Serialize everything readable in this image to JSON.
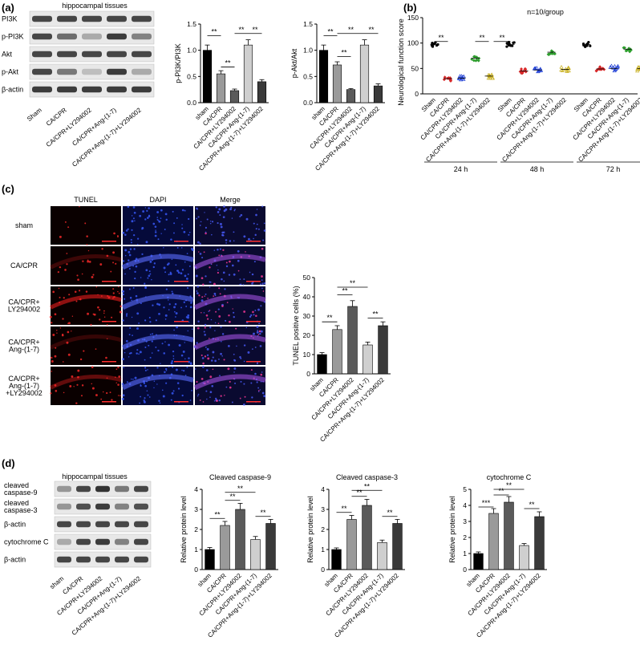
{
  "panels": {
    "a": {
      "letter": "(a)",
      "blot_title": "hippocampal tissues",
      "blot_rows": [
        "PI3K",
        "p-PI3K",
        "Akt",
        "p-Akt",
        "β-actin"
      ],
      "lane_labels": [
        "Sham",
        "CA/CPR",
        "CA/CPR+LY294002",
        "CA/CPR+Ang-(1-7)",
        "CA/CPR+Ang-(1-7)+LY294002"
      ],
      "sig": "**"
    },
    "b": {
      "letter": "(b)",
      "note": "n=10/group",
      "sig": "**"
    },
    "c": {
      "letter": "(c)",
      "col_headers": [
        "TUNEL",
        "DAPI",
        "Merge"
      ],
      "row_labels": [
        "sham",
        "CA/CPR",
        "CA/CPR+\nLY294002",
        "CA/CPR+\nAng-(1-7)",
        "CA/CPR+\nAng-(1-7)\n+LY294002"
      ],
      "sig": "**"
    },
    "d": {
      "letter": "(d)",
      "blot_title": "hippocampal  tissues",
      "blot_rows": [
        "cleaved\ncaspase-9",
        "cleaved\ncaspase-3",
        "β-actin",
        "cytochrome C",
        "β-actin"
      ],
      "lane_labels": [
        "sham",
        "CA/CPR",
        "CA/CPR+LY294002",
        "CA/CPR+Ang-(1-7)",
        "CA/CPR+Ang-(1-7)+LY294002"
      ],
      "sig2": "**",
      "sig3": "***"
    }
  },
  "chart_data": [
    {
      "id": "a1",
      "type": "bar",
      "ylabel": "p-PI3K/PI3K",
      "ylim": [
        0,
        1.5
      ],
      "yticks": [
        0.0,
        0.5,
        1.0,
        1.5
      ],
      "categories": [
        "sham",
        "CA/CPR",
        "CA/CPR+LY294002",
        "CA/CPR+Ang-(1-7)",
        "CA/CPR+Ang-(1-7)+LY294002"
      ],
      "values": [
        1.0,
        0.55,
        0.23,
        1.1,
        0.4
      ],
      "errors": [
        0.1,
        0.06,
        0.03,
        0.1,
        0.04
      ],
      "colors": [
        "#000000",
        "#9a9a9a",
        "#5a5a5a",
        "#cfcfcf",
        "#3a3a3a"
      ]
    },
    {
      "id": "a2",
      "type": "bar",
      "ylabel": "p-Akt/Akt",
      "ylim": [
        0,
        1.5
      ],
      "yticks": [
        0.0,
        0.5,
        1.0,
        1.5
      ],
      "categories": [
        "sham",
        "CA/CPR",
        "CA/CPR+LY294002",
        "CA/CPR+Ang-(1-7)",
        "CA/CPR+Ang-(1-7)+LY294002"
      ],
      "values": [
        1.0,
        0.72,
        0.25,
        1.1,
        0.32
      ],
      "errors": [
        0.1,
        0.06,
        0.02,
        0.1,
        0.04
      ],
      "colors": [
        "#000000",
        "#9a9a9a",
        "#5a5a5a",
        "#cfcfcf",
        "#3a3a3a"
      ]
    },
    {
      "id": "b",
      "type": "scatter",
      "ylabel": "Neurological function score",
      "ylim": [
        0,
        150
      ],
      "yticks": [
        0,
        50,
        100,
        150
      ],
      "categories": [
        "Sham",
        "CA/CPR",
        "CA/CPR+LY294002",
        "CA/CPR+Ang-(1-7)",
        "CA/CPR+Ang-(1-7)+LY294002"
      ],
      "groups": [
        "24 h",
        "48 h",
        "72 h"
      ],
      "colors": [
        "#000000",
        "#d62728",
        "#1f3fd6",
        "#2e9e2e",
        "#c8b020"
      ],
      "means": [
        [
          97,
          30,
          31,
          70,
          35
        ],
        [
          97,
          45,
          47,
          82,
          48
        ],
        [
          97,
          49,
          50,
          88,
          50
        ]
      ]
    },
    {
      "id": "c",
      "type": "bar",
      "ylabel": "TUNEL positive cells (%)",
      "ylim": [
        0,
        50
      ],
      "yticks": [
        0,
        10,
        20,
        30,
        40,
        50
      ],
      "categories": [
        "sham",
        "CA/CPR",
        "CA/CPR+LY294002",
        "CA/CPR+Ang-(1-7)",
        "CA/CPR+Ang-(1-7)+LY294002"
      ],
      "values": [
        10,
        23,
        35,
        15,
        25
      ],
      "errors": [
        1,
        2,
        3,
        1.5,
        2
      ],
      "colors": [
        "#000000",
        "#9a9a9a",
        "#5a5a5a",
        "#cfcfcf",
        "#3a3a3a"
      ]
    },
    {
      "id": "d1",
      "type": "bar",
      "title": "Cleaved caspase-9",
      "ylabel": "Relative protein level",
      "ylim": [
        0,
        4
      ],
      "yticks": [
        0,
        1,
        2,
        3,
        4
      ],
      "categories": [
        "sham",
        "CA/CPR",
        "CA/CPR+LY294002",
        "CA/CPR+Ang-(1-7)",
        "CA/CPR+Ang-(1-7)+LY294002"
      ],
      "values": [
        1.0,
        2.2,
        3.0,
        1.5,
        2.3
      ],
      "errors": [
        0.1,
        0.2,
        0.3,
        0.15,
        0.2
      ],
      "colors": [
        "#000000",
        "#9a9a9a",
        "#5a5a5a",
        "#cfcfcf",
        "#3a3a3a"
      ]
    },
    {
      "id": "d2",
      "type": "bar",
      "title": "Cleaved caspase-3",
      "ylabel": "Relative protein level",
      "ylim": [
        0,
        4
      ],
      "yticks": [
        0,
        1,
        2,
        3,
        4
      ],
      "categories": [
        "sham",
        "CA/CPR",
        "CA/CPR+LY294002",
        "CA/CPR+Ang-(1-7)",
        "CA/CPR+Ang-(1-7)+LY294002"
      ],
      "values": [
        1.0,
        2.5,
        3.2,
        1.35,
        2.3
      ],
      "errors": [
        0.08,
        0.2,
        0.3,
        0.12,
        0.2
      ],
      "colors": [
        "#000000",
        "#9a9a9a",
        "#5a5a5a",
        "#cfcfcf",
        "#3a3a3a"
      ]
    },
    {
      "id": "d3",
      "type": "bar",
      "title": "cytochrome C",
      "ylabel": "Relative protein level",
      "ylim": [
        0,
        5
      ],
      "yticks": [
        0,
        1,
        2,
        3,
        4,
        5
      ],
      "categories": [
        "sham",
        "CA/CPR",
        "CA/CPR+LY294002",
        "CA/CPR+Ang-(1-7)",
        "CA/CPR+Ang-(1-7)+LY294002"
      ],
      "values": [
        1.0,
        3.5,
        4.2,
        1.5,
        3.3
      ],
      "errors": [
        0.1,
        0.3,
        0.35,
        0.12,
        0.3
      ],
      "colors": [
        "#000000",
        "#9a9a9a",
        "#5a5a5a",
        "#cfcfcf",
        "#3a3a3a"
      ]
    }
  ]
}
